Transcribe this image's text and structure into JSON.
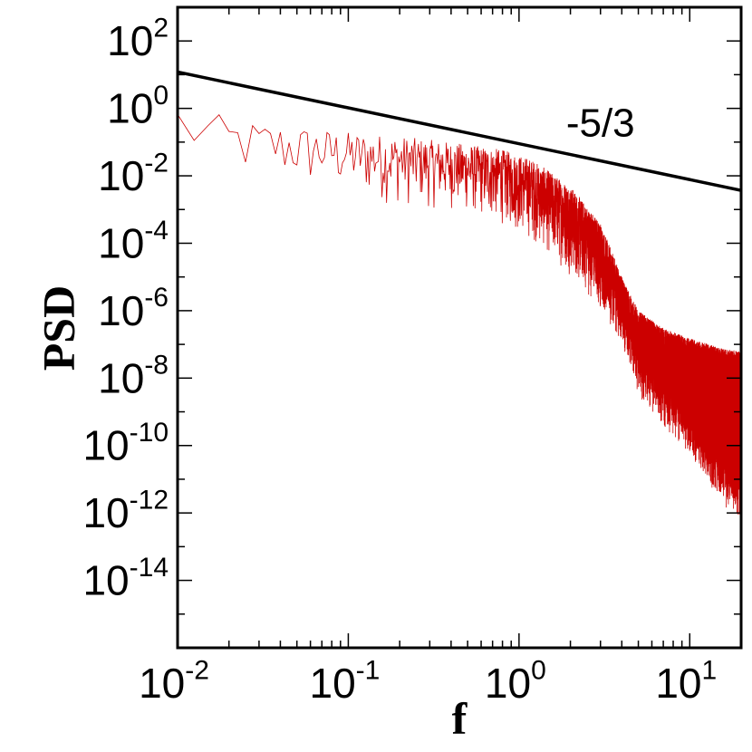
{
  "chart_data": {
    "type": "line",
    "title": "",
    "xlabel": "f",
    "ylabel": "PSD",
    "x_scale": "log",
    "y_scale": "log",
    "xlim": [
      0.01,
      20
    ],
    "ylim": [
      1e-16,
      1000.0
    ],
    "grid": false,
    "x_ticks": [
      {
        "value": 0.01,
        "base": "10",
        "exp": "-2"
      },
      {
        "value": 0.1,
        "base": "10",
        "exp": "-1"
      },
      {
        "value": 1,
        "base": "10",
        "exp": "0"
      },
      {
        "value": 10,
        "base": "10",
        "exp": "1"
      }
    ],
    "y_ticks": [
      {
        "value": 100,
        "base": "10",
        "exp": "2"
      },
      {
        "value": 1,
        "base": "10",
        "exp": "0"
      },
      {
        "value": 0.01,
        "base": "10",
        "exp": "-2"
      },
      {
        "value": 0.0001,
        "base": "10",
        "exp": "-4"
      },
      {
        "value": 1e-06,
        "base": "10",
        "exp": "-6"
      },
      {
        "value": 1e-08,
        "base": "10",
        "exp": "-8"
      },
      {
        "value": 1e-10,
        "base": "10",
        "exp": "-10"
      },
      {
        "value": 1e-12,
        "base": "10",
        "exp": "-12"
      },
      {
        "value": 1e-14,
        "base": "10",
        "exp": "-14"
      }
    ],
    "series": [
      {
        "type": "line",
        "color": "#cc0000",
        "envelope": {
          "x": [
            0.01,
            0.02,
            0.05,
            0.1,
            0.2,
            0.4,
            0.8,
            1.2,
            2,
            3,
            4,
            5,
            7,
            10,
            15,
            20
          ],
          "upper": [
            2,
            0.5,
            0.3,
            0.2,
            0.15,
            0.1,
            0.06,
            0.03,
            0.005,
            0.0004,
            1e-05,
            1e-06,
            3e-07,
            1.5e-07,
            8e-08,
            6e-08
          ],
          "lower": [
            0.01,
            0.005,
            0.003,
            0.002,
            0.001,
            0.0008,
            0.0003,
            0.0001,
            1e-05,
            1e-06,
            1e-07,
            3e-09,
            3e-10,
            5e-11,
            2e-12,
            5e-13
          ]
        }
      },
      {
        "type": "line",
        "color": "#000000",
        "x": [
          0.01,
          20
        ],
        "y": [
          12,
          0.0037
        ]
      }
    ],
    "annotations": [
      {
        "text": "-5/3",
        "x": 3,
        "y": 0.4
      }
    ]
  }
}
